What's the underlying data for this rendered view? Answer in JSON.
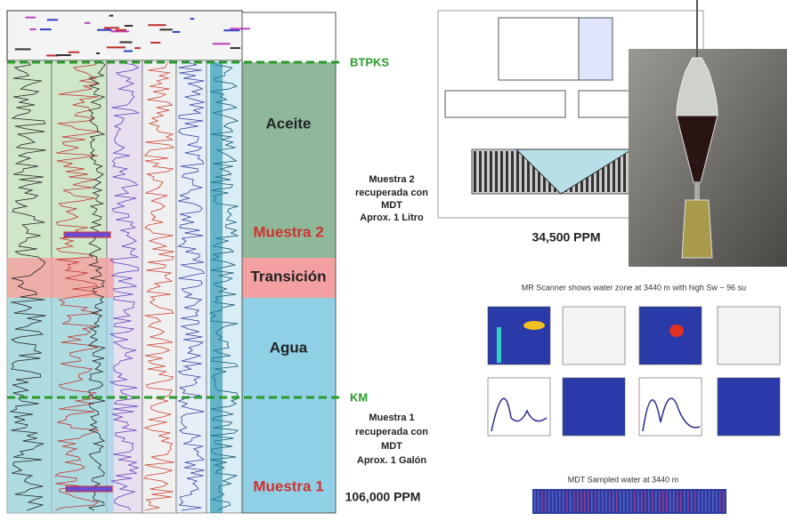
{
  "well_log": {
    "markers": {
      "top": "BTPKS",
      "bottom": "KM"
    },
    "zones": [
      "Aceite",
      "Muestra 2",
      "Transición",
      "Agua",
      "Muestra 1"
    ]
  },
  "notes": {
    "sample_2": [
      "Muestra 2",
      "recuperada con",
      "MDT",
      "Aprox. 1 Litro"
    ],
    "sample_1": [
      "Muestra 1",
      "recuperada con",
      "MDT",
      "Aprox. 1 Galón"
    ],
    "ppm_2": "34,500 PPM",
    "ppm_1": "106,000 PPM"
  },
  "mr_scanner": {
    "caption": "MR Scanner shows water zone at 3440 m with high Sw ~ 96 su"
  },
  "mdt": {
    "caption": "MDT Sampled water  at 3440 m"
  }
}
